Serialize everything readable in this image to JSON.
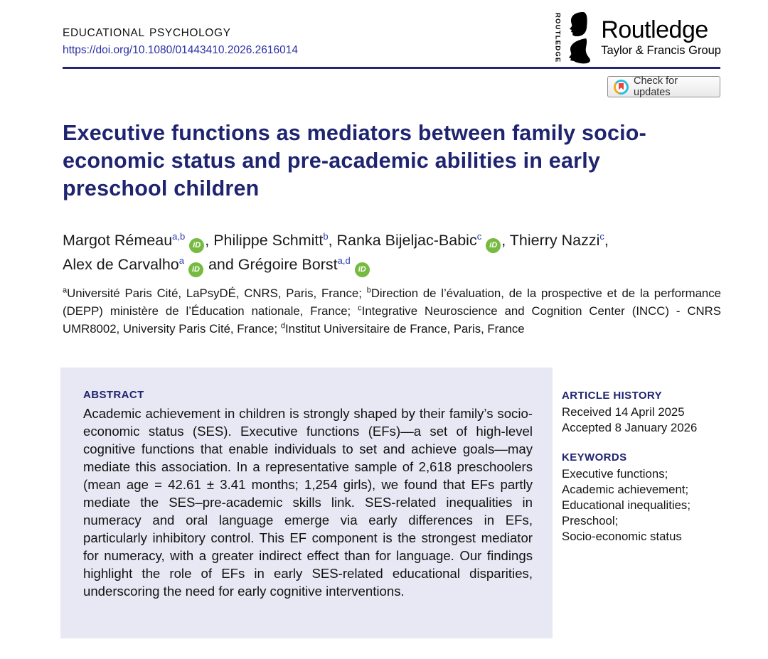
{
  "header": {
    "journal": "EDUCATIONAL PSYCHOLOGY",
    "doi": "https://doi.org/10.1080/01443410.2026.2616014",
    "logo": {
      "vertical_text": "ROUTLEDGE",
      "name": "Routledge",
      "group": "Taylor & Francis Group"
    },
    "check_updates_label": "Check for updates"
  },
  "article": {
    "title": "Executive functions as mediators between family socio-economic status and pre-academic abilities in early preschool children",
    "authors": [
      {
        "name": "Margot Rémeau",
        "sup": "a,b",
        "orcid": true,
        "sep": ", "
      },
      {
        "name": "Philippe Schmitt",
        "sup": "b",
        "orcid": false,
        "sep": ", "
      },
      {
        "name": "Ranka Bijeljac-Babic",
        "sup": "c",
        "orcid": true,
        "sep": ", "
      },
      {
        "name": "Thierry Nazzi",
        "sup": "c",
        "orcid": false,
        "sep": ", "
      },
      {
        "name": "Alex de Carvalho",
        "sup": "a",
        "orcid": true,
        "sep": " and "
      },
      {
        "name": "Grégoire Borst",
        "sup": "a,d",
        "orcid": true,
        "sep": ""
      }
    ],
    "orcid_icon_text": "iD",
    "affiliations": [
      {
        "sup": "a",
        "text": "Université Paris Cité, LaPsyDÉ, CNRS, Paris, France; "
      },
      {
        "sup": "b",
        "text": "Direction de l’évaluation, de la prospective et de la performance (DEPP) ministère de l’Éducation nationale, France; "
      },
      {
        "sup": "c",
        "text": "Integrative Neuroscience and Cognition Center (INCC) - CNRS UMR8002, University Paris Cité, France; "
      },
      {
        "sup": "d",
        "text": "Institut Universitaire de France, Paris, France"
      }
    ]
  },
  "abstract": {
    "heading": "ABSTRACT",
    "text": "Academic achievement in children is strongly shaped by their family’s socio-economic status (SES). Executive functions (EFs)—a set of high-level cognitive functions that enable individuals to set and achieve goals—may mediate this association. In a representative sample of 2,618 preschoolers (mean age = 42.61 ± 3.41 months; 1,254 girls), we found that EFs partly mediate the SES–pre-academic skills link. SES-related inequalities in numeracy and oral language emerge via early differences in EFs, particularly inhibitory control. This EF component is the strongest mediator for numeracy, with a greater indirect effect than for language. Our findings highlight the role of EFs in early SES-related educational disparities, underscoring the need for early cognitive interventions."
  },
  "sidebar": {
    "history_heading": "ARTICLE HISTORY",
    "history": [
      "Received 14 April 2025",
      "Accepted 8 January 2026"
    ],
    "keywords_heading": "KEYWORDS",
    "keywords": [
      "Executive functions;",
      "Academic achievement;",
      "Educational inequalities;",
      "Preschool;",
      "Socio-economic status"
    ]
  },
  "colors": {
    "navy_heading": "#1f2470",
    "link_blue": "#2b2fa4",
    "superscript_blue": "#2b3bae",
    "orcid_green": "#77ba41",
    "abstract_background": "#e7e8f3",
    "crossmark_cyan": "#2bbde2",
    "crossmark_yellow": "#f6a81c",
    "crossmark_red": "#e8453c"
  }
}
